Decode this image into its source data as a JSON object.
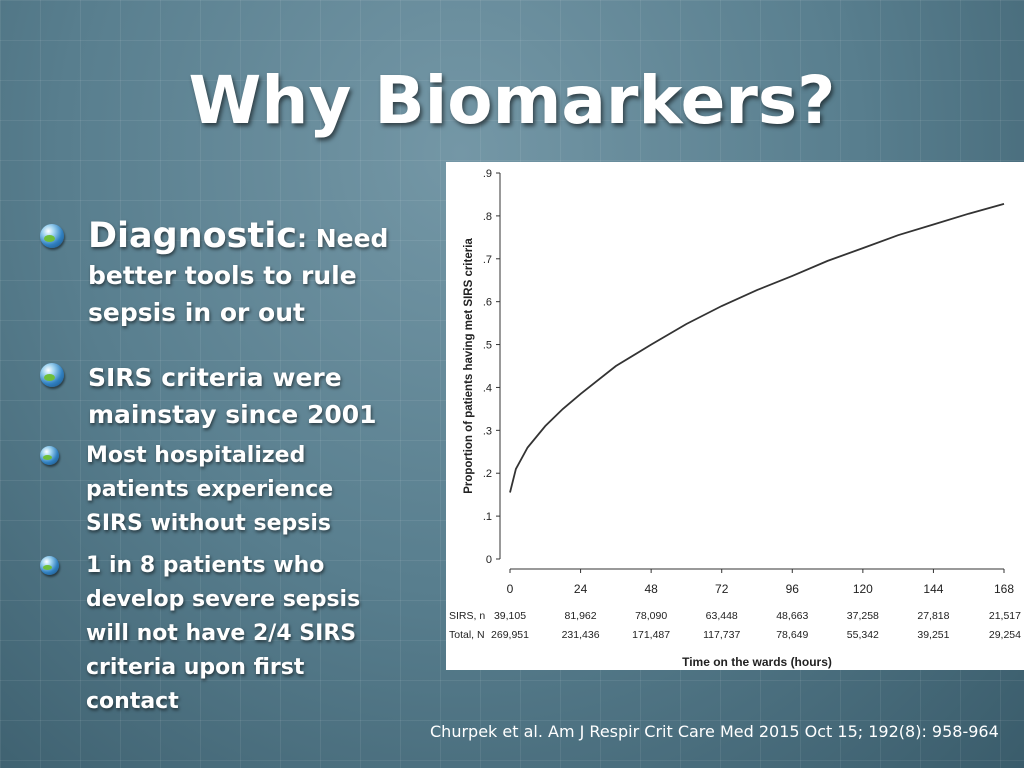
{
  "slide": {
    "title": "Why Biomarkers?",
    "bullets": {
      "diagnostic_head": "Diagnostic",
      "diagnostic_tail": ": Need",
      "diagnostic_line2": "better tools to rule",
      "diagnostic_line3": "sepsis in or out",
      "sirs_line1": "SIRS criteria were",
      "sirs_line2": "mainstay since 2001",
      "sub1_line1": "Most hospitalized",
      "sub1_line2": "patients experience",
      "sub1_line3": "SIRS without sepsis",
      "sub2_line1": "1 in 8 patients who",
      "sub2_line2": "develop severe sepsis",
      "sub2_line3": "will not have 2/4 SIRS",
      "sub2_line4": "criteria upon first",
      "sub2_line5": "contact"
    },
    "citation": "Churpek et  al. Am J Respir Crit Care Med 2015 Oct 15; 192(8): 958-964",
    "icon": "globe-bullet-icon",
    "colors": {
      "background": "#4f7585",
      "text": "#ffffff",
      "curve": "#333333"
    }
  },
  "chart_data": {
    "type": "line",
    "title": "",
    "xlabel": "Time on the wards (hours)",
    "ylabel": "Proportion of patients having met SIRS criteria",
    "xlim": [
      0,
      168
    ],
    "ylim": [
      0,
      0.9
    ],
    "x_ticks": [
      0,
      24,
      48,
      72,
      96,
      120,
      144,
      168
    ],
    "y_ticks": [
      0,
      0.1,
      0.2,
      0.3,
      0.4,
      0.5,
      0.6,
      0.7,
      0.8,
      0.9
    ],
    "y_tick_labels": [
      "0",
      ".1",
      ".2",
      ".3",
      ".4",
      ".5",
      ".6",
      ".7",
      ".8",
      ".9"
    ],
    "grid": false,
    "series": [
      {
        "x": [
          0,
          2,
          6,
          12,
          18,
          24,
          36,
          48,
          60,
          72,
          84,
          96,
          108,
          120,
          132,
          144,
          156,
          168
        ],
        "values": [
          0.155,
          0.21,
          0.26,
          0.31,
          0.35,
          0.385,
          0.45,
          0.5,
          0.548,
          0.59,
          0.627,
          0.66,
          0.695,
          0.725,
          0.755,
          0.78,
          0.805,
          0.828
        ]
      }
    ],
    "risk_table": [
      {
        "label": "SIRS, n",
        "values": [
          "39,105",
          "81,962",
          "78,090",
          "63,448",
          "48,663",
          "37,258",
          "27,818",
          "21,517"
        ]
      },
      {
        "label": "Total, N",
        "values": [
          "269,951",
          "231,436",
          "171,487",
          "117,737",
          "78,649",
          "55,342",
          "39,251",
          "29,254"
        ]
      }
    ]
  }
}
